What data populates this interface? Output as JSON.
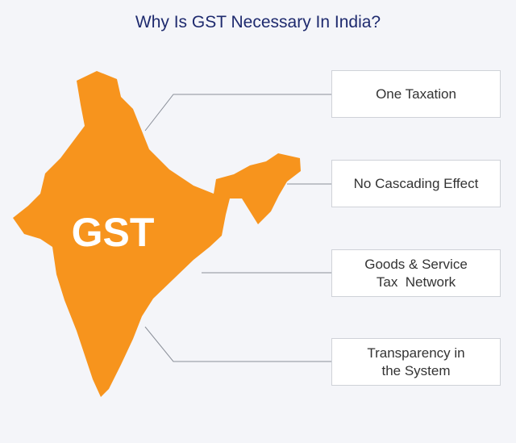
{
  "header": {
    "title": "Why Is GST Necessary In India?"
  },
  "map": {
    "label": "GST"
  },
  "boxes": [
    {
      "lines": [
        "One Taxation"
      ]
    },
    {
      "lines": [
        "No Cascading Effect"
      ]
    },
    {
      "lines": [
        "Goods & Service",
        "Tax  Network"
      ]
    },
    {
      "lines": [
        "Transparency in",
        "the System"
      ]
    }
  ]
}
